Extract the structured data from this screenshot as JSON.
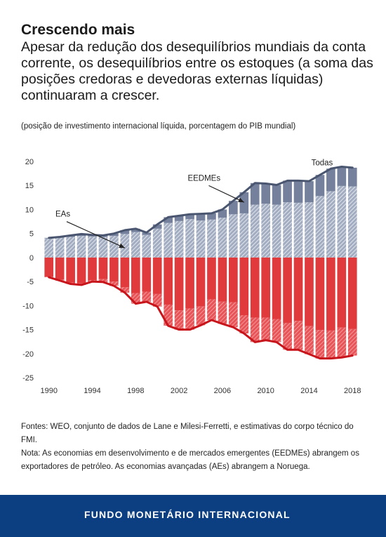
{
  "header": {
    "title": "Crescendo mais",
    "subtitle": "Apesar da redução dos desequilíbrios mundiais da conta corrente, os desequilíbrios entre os estoques (a soma das posições credoras e devedoras externas líquidas) continuaram a crescer.",
    "note": "(posição de investimento internacional líquida, porcentagem do PIB mundial)"
  },
  "chart_data": {
    "type": "bar",
    "title": "",
    "xlabel": "",
    "ylabel": "",
    "ylim": [
      -25,
      20
    ],
    "yticks": [
      "20",
      "15",
      "10",
      "5",
      "0",
      "-5",
      "-10",
      "-15",
      "-20",
      "-25"
    ],
    "xticks": [
      "1990",
      "1994",
      "1998",
      "2002",
      "2006",
      "2010",
      "2014",
      "2018"
    ],
    "x": [
      1990,
      1991,
      1992,
      1993,
      1994,
      1995,
      1996,
      1997,
      1998,
      1999,
      2000,
      2001,
      2002,
      2003,
      2004,
      2005,
      2006,
      2007,
      2008,
      2009,
      2010,
      2011,
      2012,
      2013,
      2014,
      2015,
      2016,
      2017,
      2018
    ],
    "grid": false,
    "series": [
      {
        "name": "",
        "values": [
          4.0,
          4.1,
          4.3,
          4.5,
          4.4,
          4.3,
          4.5,
          4.9,
          5.3,
          4.7,
          6.0,
          7.2,
          7.6,
          8.0,
          7.7,
          7.9,
          8.3,
          9.0,
          9.2,
          11.0,
          11.2,
          11.0,
          11.5,
          11.4,
          11.5,
          12.8,
          13.8,
          14.9,
          14.8
        ]
      },
      {
        "name": "",
        "values": [
          0.1,
          0.2,
          0.3,
          0.4,
          0.3,
          0.3,
          0.5,
          0.8,
          0.7,
          0.5,
          0.9,
          1.2,
          1.1,
          1.0,
          1.4,
          1.3,
          1.7,
          2.8,
          4.4,
          4.5,
          4.2,
          4.1,
          4.5,
          4.6,
          4.4,
          4.4,
          4.7,
          4.0,
          3.9
        ]
      },
      {
        "name": "",
        "values": [
          -4.0,
          -4.6,
          -5.2,
          -5.4,
          -4.7,
          -4.5,
          -5.0,
          -6.2,
          -7.4,
          -7.1,
          -7.6,
          -9.8,
          -11.0,
          -10.6,
          -10.2,
          -8.7,
          -9.2,
          -9.3,
          -12.0,
          -12.5,
          -12.5,
          -12.8,
          -13.6,
          -13.2,
          -14.3,
          -15.1,
          -15.2,
          -14.6,
          -14.9
        ]
      },
      {
        "name": "",
        "values": [
          -0.1,
          -0.2,
          -0.3,
          -0.3,
          -0.3,
          -0.6,
          -0.9,
          -1.1,
          -2.2,
          -2.1,
          -2.6,
          -4.4,
          -4.0,
          -4.4,
          -3.9,
          -4.3,
          -4.6,
          -5.2,
          -3.8,
          -5.1,
          -4.7,
          -4.8,
          -5.6,
          -6.0,
          -5.8,
          -5.9,
          -5.8,
          -6.2,
          -5.5
        ]
      }
    ],
    "total_positive": [
      4.1,
      4.3,
      4.6,
      4.9,
      4.7,
      4.6,
      5.0,
      5.7,
      6.0,
      5.2,
      6.9,
      8.4,
      8.7,
      9.0,
      9.1,
      9.2,
      10.0,
      11.8,
      13.6,
      15.5,
      15.4,
      15.1,
      16.0,
      16.0,
      15.9,
      17.2,
      18.5,
      18.9,
      18.7
    ],
    "total_negative": [
      -4.1,
      -4.8,
      -5.5,
      -5.7,
      -5.0,
      -5.1,
      -5.9,
      -7.3,
      -9.6,
      -9.2,
      -10.2,
      -14.2,
      -15.0,
      -15.0,
      -14.1,
      -13.0,
      -13.8,
      -14.5,
      -15.8,
      -17.6,
      -17.2,
      -17.6,
      -19.2,
      -19.2,
      -20.1,
      -21.0,
      -21.0,
      -20.8,
      -20.4
    ],
    "annotations": [
      {
        "text": "Todas",
        "x": 2014.2,
        "y": 19.2
      },
      {
        "text": "EEDMEs",
        "x": 2002.8,
        "y": 16.0,
        "arrow_to": [
          2008.0,
          11.5
        ]
      },
      {
        "text": "EAs",
        "x": 1990.6,
        "y": 8.5,
        "arrow_to": [
          1997.0,
          2.0
        ]
      }
    ],
    "colors": {
      "ae_positive": "#8e9bb2",
      "eme_positive": "#75819c",
      "ae_negative": "#e03a3d",
      "eme_negative": "#d02428",
      "total_positive_line": "#4a5670",
      "total_negative_line": "#c8151c"
    }
  },
  "footer": {
    "sources": "Fontes: WEO, conjunto de dados de Lane e Milesi-Ferretti, e estimativas do corpo técnico do FMI.",
    "note": "Nota: As economias em desenvolvimento e de mercados emergentes (EEDMEs) abrangem os exportadores de petróleo. As economias avançadas (AEs) abrangem a Noruega."
  },
  "banner": {
    "text": "FUNDO MONETÁRIO INTERNACIONAL",
    "color": "#0b3f81"
  }
}
